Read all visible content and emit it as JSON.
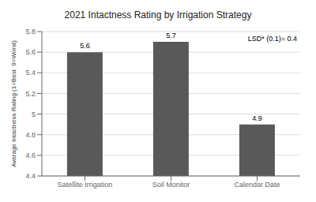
{
  "chart_data": {
    "type": "bar",
    "title": "2021 Intactness Rating by Irrigation Strategy",
    "ylabel": "Average Intactness Rating (1=Best  9=Worst)",
    "categories": [
      "Satellite Irrigation",
      "Soil Monitor",
      "Calendar Date"
    ],
    "values": [
      5.6,
      5.7,
      4.9
    ],
    "color": "#595959",
    "ylim": [
      4.4,
      5.8
    ],
    "yticks": [
      4.4,
      4.6,
      4.8,
      5,
      5.2,
      5.4,
      5.6,
      5.8
    ],
    "grid": true,
    "data_labels": true,
    "annotation": "LSD* (0.1)= 0.4"
  }
}
